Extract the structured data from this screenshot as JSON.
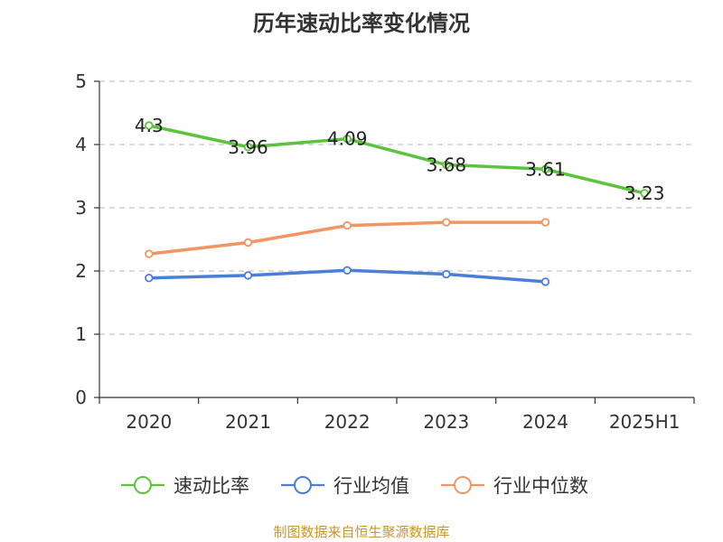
{
  "chart_data": {
    "type": "line",
    "title": "历年速动比率变化情况",
    "categories": [
      "2020",
      "2021",
      "2022",
      "2023",
      "2024",
      "2025H1"
    ],
    "ylim": [
      0,
      5
    ],
    "yticks": [
      "0",
      "1",
      "2",
      "3",
      "4",
      "5"
    ],
    "grid": true,
    "legend_position": "bottom",
    "series": [
      {
        "name": "速动比率",
        "color": "#5cc33c",
        "values": [
          4.3,
          3.96,
          4.09,
          3.68,
          3.61,
          3.23
        ],
        "labels": [
          "4.3",
          "3.96",
          "4.09",
          "3.68",
          "3.61",
          "3.23"
        ]
      },
      {
        "name": "行业均值",
        "color": "#4a7fd6",
        "values": [
          1.89,
          1.93,
          2.01,
          1.95,
          1.83,
          null
        ],
        "labels": []
      },
      {
        "name": "行业中位数",
        "color": "#f39561",
        "values": [
          2.27,
          2.45,
          2.72,
          2.77,
          2.77,
          null
        ],
        "labels": []
      }
    ]
  },
  "footer": {
    "source": "制图数据来自恒生聚源数据库"
  }
}
